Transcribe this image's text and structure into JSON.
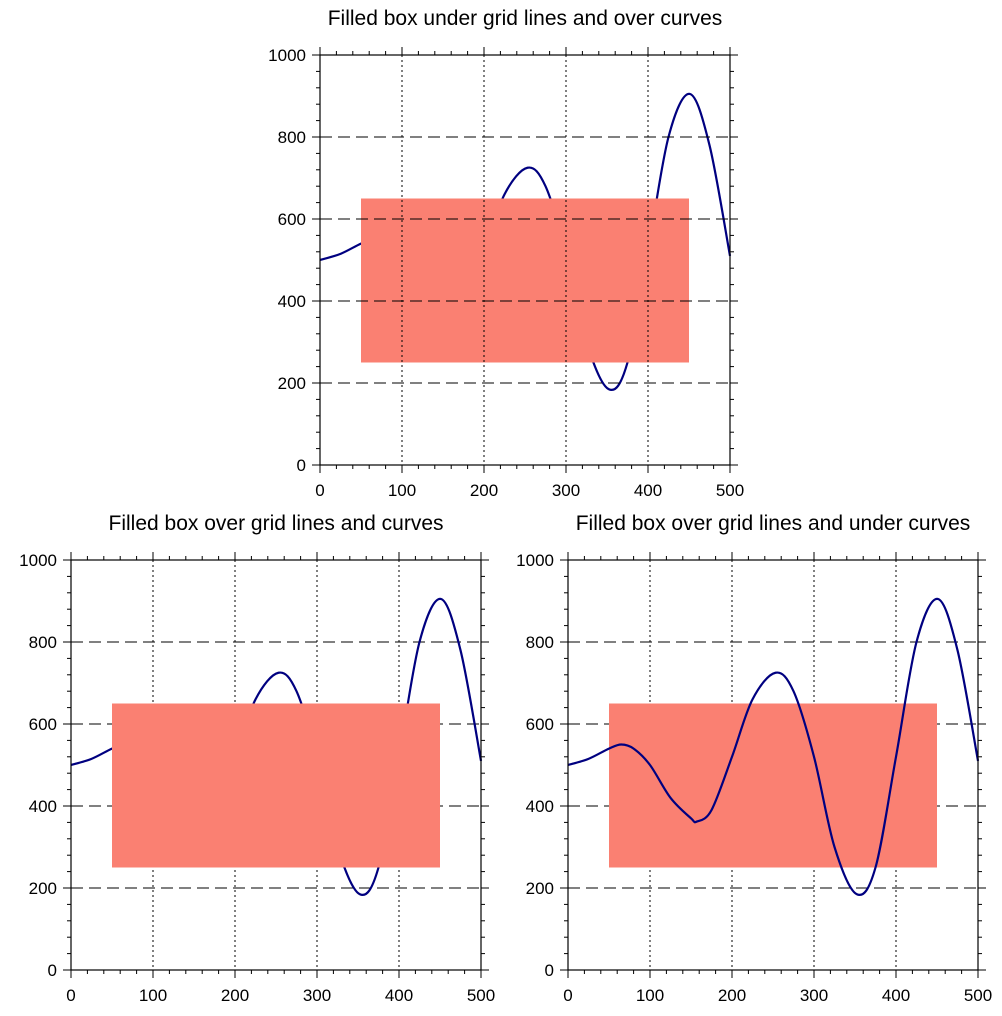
{
  "colors": {
    "box": "#fa8072",
    "curve": "#000080",
    "axis": "#000000"
  },
  "chart_data": [
    {
      "type": "line",
      "title": "Filled box under grid lines and over curves",
      "layering": [
        "curve",
        "box",
        "grid"
      ],
      "xlim": [
        0,
        500
      ],
      "ylim": [
        0,
        1000
      ],
      "xticks": [
        "0",
        "100",
        "200",
        "300",
        "400",
        "500"
      ],
      "yticks": [
        "0",
        "200",
        "400",
        "600",
        "800",
        "1000"
      ],
      "grid": true,
      "box": {
        "x": [
          50,
          450
        ],
        "y": [
          250,
          650
        ]
      },
      "series": [
        {
          "x": [
            0,
            25,
            50,
            65,
            80,
            100,
            125,
            150,
            157,
            175,
            200,
            225,
            253,
            275,
            300,
            325,
            352,
            375,
            400,
            425,
            451,
            475,
            500
          ],
          "y": [
            500,
            515,
            540,
            550,
            540,
            500,
            420,
            370,
            362,
            390,
            520,
            660,
            725,
            680,
            520,
            300,
            185,
            250,
            520,
            800,
            905,
            780,
            510
          ]
        }
      ]
    },
    {
      "type": "line",
      "title": "Filled box over grid lines and curves",
      "layering": [
        "grid",
        "curve",
        "box"
      ],
      "xlim": [
        0,
        500
      ],
      "ylim": [
        0,
        1000
      ],
      "xticks": [
        "0",
        "100",
        "200",
        "300",
        "400",
        "500"
      ],
      "yticks": [
        "0",
        "200",
        "400",
        "600",
        "800",
        "1000"
      ],
      "grid": true,
      "box": {
        "x": [
          50,
          450
        ],
        "y": [
          250,
          650
        ]
      },
      "series": [
        {
          "x": [
            0,
            25,
            50,
            65,
            80,
            100,
            125,
            150,
            157,
            175,
            200,
            225,
            253,
            275,
            300,
            325,
            352,
            375,
            400,
            425,
            451,
            475,
            500
          ],
          "y": [
            500,
            515,
            540,
            550,
            540,
            500,
            420,
            370,
            362,
            390,
            520,
            660,
            725,
            680,
            520,
            300,
            185,
            250,
            520,
            800,
            905,
            780,
            510
          ]
        }
      ]
    },
    {
      "type": "line",
      "title": "Filled box over grid lines and under curves",
      "layering": [
        "grid",
        "box",
        "curve"
      ],
      "xlim": [
        0,
        500
      ],
      "ylim": [
        0,
        1000
      ],
      "xticks": [
        "0",
        "100",
        "200",
        "300",
        "400",
        "500"
      ],
      "yticks": [
        "0",
        "200",
        "400",
        "600",
        "800",
        "1000"
      ],
      "grid": true,
      "box": {
        "x": [
          50,
          450
        ],
        "y": [
          250,
          650
        ]
      },
      "series": [
        {
          "x": [
            0,
            25,
            50,
            65,
            80,
            100,
            125,
            150,
            157,
            175,
            200,
            225,
            253,
            275,
            300,
            325,
            352,
            375,
            400,
            425,
            451,
            475,
            500
          ],
          "y": [
            500,
            515,
            540,
            550,
            540,
            500,
            420,
            370,
            362,
            390,
            520,
            660,
            725,
            680,
            520,
            300,
            185,
            250,
            520,
            800,
            905,
            780,
            510
          ]
        }
      ]
    }
  ]
}
